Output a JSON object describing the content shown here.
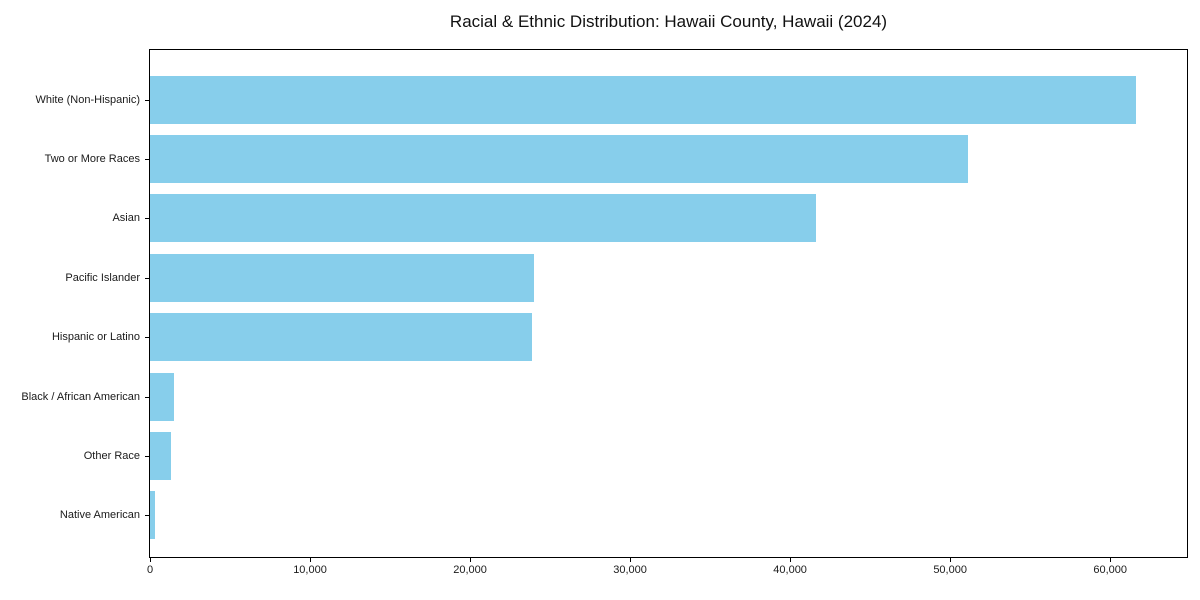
{
  "chart_data": {
    "type": "bar",
    "orientation": "horizontal",
    "title": "Racial & Ethnic Distribution: Hawaii County, Hawaii (2024)",
    "categories": [
      "White (Non-Hispanic)",
      "Two or More Races",
      "Asian",
      "Pacific Islander",
      "Hispanic or Latino",
      "Black / African American",
      "Other Race",
      "Native American"
    ],
    "values": [
      61600,
      51100,
      41600,
      24000,
      23900,
      1500,
      1300,
      300
    ],
    "xlabel": "",
    "ylabel": "",
    "xlim": [
      0,
      64800
    ],
    "xticks": [
      0,
      10000,
      20000,
      30000,
      40000,
      50000,
      60000
    ],
    "xtick_labels": [
      "0",
      "10,000",
      "20,000",
      "30,000",
      "40,000",
      "50,000",
      "60,000"
    ],
    "bar_color": "#87CEEB",
    "background_color": "#ffffff",
    "spine_color": "#000000",
    "grid": false,
    "legend": null
  }
}
